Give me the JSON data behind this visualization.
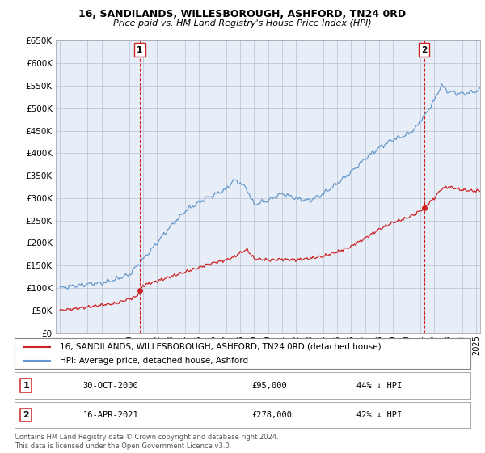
{
  "title": "16, SANDILANDS, WILLESBOROUGH, ASHFORD, TN24 0RD",
  "subtitle": "Price paid vs. HM Land Registry's House Price Index (HPI)",
  "legend_line1": "16, SANDILANDS, WILLESBOROUGH, ASHFORD, TN24 0RD (detached house)",
  "legend_line2": "HPI: Average price, detached house, Ashford",
  "footer": "Contains HM Land Registry data © Crown copyright and database right 2024.\nThis data is licensed under the Open Government Licence v3.0.",
  "transaction1": {
    "label": "1",
    "date": "30-OCT-2000",
    "price": 95000,
    "hpi_diff": "44% ↓ HPI"
  },
  "transaction2": {
    "label": "2",
    "date": "16-APR-2021",
    "price": 278000,
    "hpi_diff": "42% ↓ HPI"
  },
  "hpi_color": "#6699cc",
  "price_color": "#cc2222",
  "chart_bg": "#e8eef8",
  "bg_color": "#ffffff",
  "grid_color": "#c0c8d8",
  "ylim": [
    0,
    650000
  ],
  "yticks": [
    0,
    50000,
    100000,
    150000,
    200000,
    250000,
    300000,
    350000,
    400000,
    450000,
    500000,
    550000,
    600000,
    650000
  ],
  "xlabel_start_year": 1995,
  "xlabel_end_year": 2025
}
